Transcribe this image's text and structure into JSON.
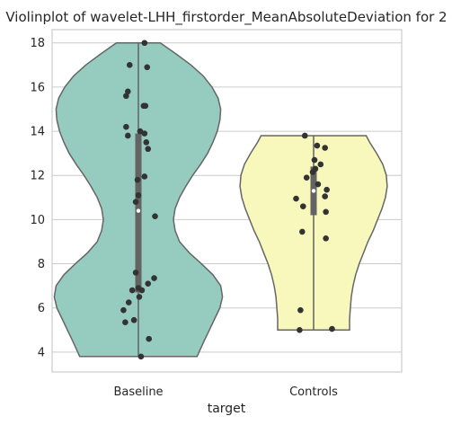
{
  "chart_data": {
    "type": "violin",
    "title": "Violinplot of wavelet-LHH_firstorder_MeanAbsoluteDeviation for 2",
    "xlabel": "target",
    "ylabel": "",
    "categories": [
      "Baseline",
      "Controls"
    ],
    "ylim": [
      3.1,
      18.6
    ],
    "yticks": [
      4,
      6,
      8,
      10,
      12,
      14,
      16,
      18
    ],
    "ytick_labels": [
      "4",
      "6",
      "8",
      "10",
      "12",
      "14",
      "16",
      "18"
    ],
    "grid": true,
    "colors": {
      "Baseline": "#96cbc0",
      "Controls": "#f8f8bd",
      "points": "#333333",
      "violin_edge": "#666666",
      "box": "#636363",
      "median": "#ffffff"
    },
    "violins": [
      {
        "category": "Baseline",
        "min": 3.8,
        "max": 18.0,
        "q1": 6.7,
        "median": 10.4,
        "q3": 13.9,
        "profile": [
          [
            3.8,
            0.67
          ],
          [
            4.5,
            0.75
          ],
          [
            5.0,
            0.81
          ],
          [
            5.5,
            0.87
          ],
          [
            6.0,
            0.93
          ],
          [
            6.5,
            0.96
          ],
          [
            7.0,
            0.94
          ],
          [
            7.5,
            0.85
          ],
          [
            8.0,
            0.72
          ],
          [
            8.5,
            0.58
          ],
          [
            9.0,
            0.47
          ],
          [
            9.5,
            0.42
          ],
          [
            10.0,
            0.4
          ],
          [
            10.5,
            0.42
          ],
          [
            11.0,
            0.47
          ],
          [
            11.5,
            0.54
          ],
          [
            12.0,
            0.62
          ],
          [
            12.5,
            0.71
          ],
          [
            13.0,
            0.79
          ],
          [
            13.5,
            0.85
          ],
          [
            14.0,
            0.9
          ],
          [
            14.5,
            0.93
          ],
          [
            15.0,
            0.94
          ],
          [
            15.5,
            0.91
          ],
          [
            16.0,
            0.84
          ],
          [
            16.5,
            0.74
          ],
          [
            17.0,
            0.6
          ],
          [
            17.5,
            0.43
          ],
          [
            18.0,
            0.25
          ]
        ],
        "points": [
          18.0,
          17.0,
          16.9,
          15.8,
          15.6,
          15.15,
          15.15,
          14.2,
          14.0,
          13.8,
          13.9,
          13.5,
          13.2,
          11.95,
          11.8,
          11.1,
          10.8,
          10.15,
          7.6,
          7.35,
          7.1,
          6.9,
          6.8,
          6.8,
          6.5,
          6.25,
          5.9,
          5.45,
          5.35,
          4.6,
          3.8
        ],
        "jitter": [
          0.07,
          -0.1,
          0.1,
          -0.12,
          -0.14,
          0.06,
          0.08,
          -0.14,
          0.02,
          -0.12,
          0.07,
          0.09,
          0.11,
          0.07,
          -0.01,
          0.0,
          -0.03,
          0.19,
          -0.03,
          0.18,
          0.11,
          0.0,
          -0.07,
          0.04,
          0.01,
          -0.11,
          -0.17,
          -0.05,
          -0.15,
          0.12,
          0.03
        ]
      },
      {
        "category": "Controls",
        "min": 5.0,
        "max": 13.8,
        "q1": 10.2,
        "median": 11.3,
        "q3": 12.4,
        "profile": [
          [
            5.0,
            0.41
          ],
          [
            5.5,
            0.41
          ],
          [
            6.0,
            0.42
          ],
          [
            6.5,
            0.43
          ],
          [
            7.0,
            0.45
          ],
          [
            7.5,
            0.48
          ],
          [
            8.0,
            0.52
          ],
          [
            8.5,
            0.57
          ],
          [
            9.0,
            0.62
          ],
          [
            9.5,
            0.68
          ],
          [
            10.0,
            0.73
          ],
          [
            10.5,
            0.78
          ],
          [
            11.0,
            0.82
          ],
          [
            11.5,
            0.84
          ],
          [
            12.0,
            0.83
          ],
          [
            12.5,
            0.79
          ],
          [
            13.0,
            0.72
          ],
          [
            13.5,
            0.64
          ],
          [
            13.8,
            0.6
          ]
        ],
        "points": [
          13.8,
          13.35,
          13.25,
          12.7,
          12.5,
          12.3,
          12.15,
          11.9,
          11.6,
          11.35,
          11.05,
          10.95,
          10.6,
          10.35,
          9.45,
          9.15,
          5.9,
          5.05,
          5.0
        ],
        "jitter": [
          -0.1,
          0.04,
          0.13,
          0.01,
          0.08,
          0.02,
          -0.01,
          -0.08,
          0.05,
          0.15,
          0.13,
          -0.2,
          -0.12,
          0.14,
          -0.13,
          0.14,
          -0.15,
          0.21,
          -0.16
        ]
      }
    ]
  }
}
